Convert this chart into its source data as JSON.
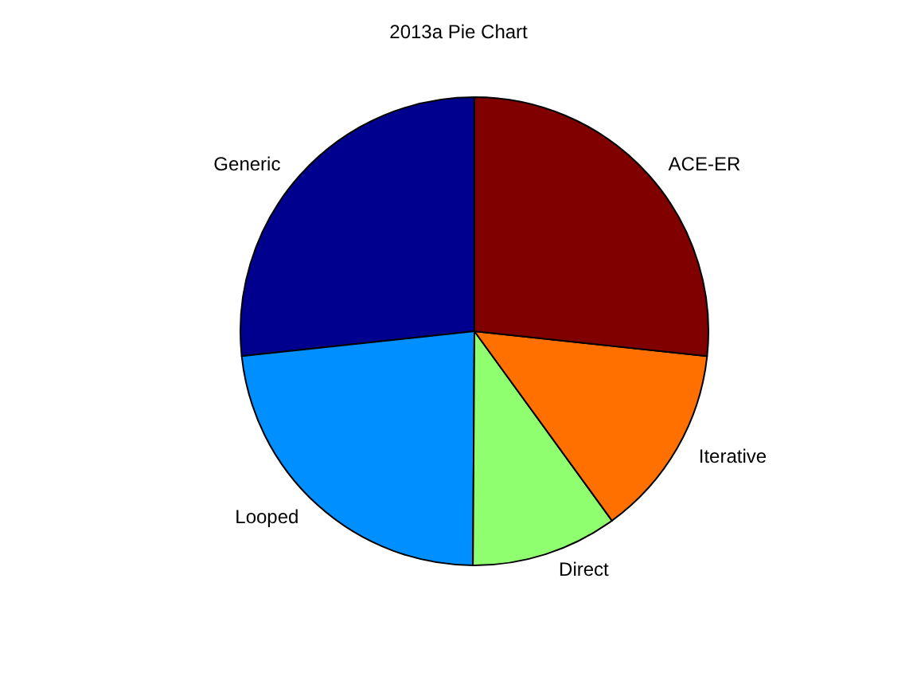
{
  "chart_data": {
    "type": "pie",
    "title": "2013a Pie Chart",
    "categories": [
      "Generic",
      "Looped",
      "Direct",
      "Iterative",
      "ACE-ER"
    ],
    "values": [
      26.7,
      23.2,
      10.1,
      13.3,
      26.7
    ],
    "colors": [
      "#00008f",
      "#008fff",
      "#8fff70",
      "#ff7000",
      "#800000"
    ]
  }
}
